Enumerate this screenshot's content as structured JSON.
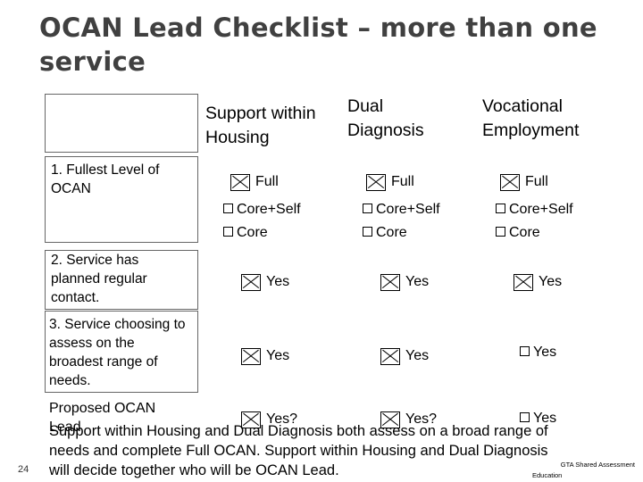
{
  "title": "OCAN Lead Checklist – more than one service",
  "columns": [
    {
      "label": "Support within Housing"
    },
    {
      "label": "Dual Diagnosis"
    },
    {
      "label": "Vocational Employment"
    }
  ],
  "rows": {
    "level": {
      "label": "1. Fullest Level of OCAN",
      "full_label": "Full",
      "core_self_label": "Core+Self",
      "core_label": "Core"
    },
    "contact": {
      "label": "2. Service has planned regular contact.",
      "yes_label": "Yes"
    },
    "range": {
      "label": "3. Service choosing to assess on the broadest range of needs.",
      "yes_label": "Yes"
    },
    "proposed": {
      "label": "Proposed OCAN Lead",
      "yes_q_label": "Yes?",
      "yes_label": "Yes"
    }
  },
  "bottom_text": "Support within Housing and Dual Diagnosis both assess on a broad range of needs and complete Full OCAN. Support within Housing and Dual Diagnosis will decide together who will be OCAN Lead.",
  "page_number": "24",
  "footer": {
    "line1": "GTA Shared Assessment",
    "line2": "Education"
  },
  "icons": {
    "checked": "checked-box-icon",
    "unchecked": "empty-box-icon"
  }
}
